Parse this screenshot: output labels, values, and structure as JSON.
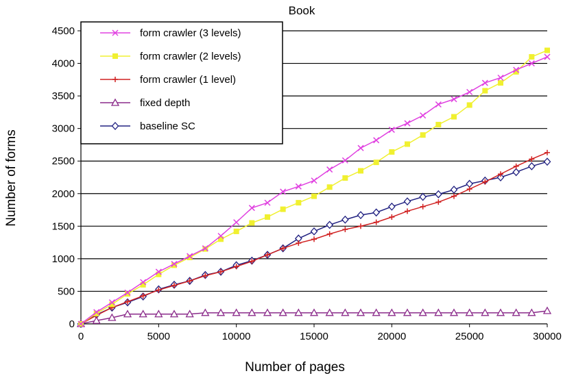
{
  "chart_data": {
    "type": "line",
    "title": "Book",
    "xlabel": "Number of pages",
    "ylabel": "Number of forms",
    "xlim": [
      0,
      30000
    ],
    "ylim": [
      0,
      4500
    ],
    "xticks": [
      0,
      5000,
      10000,
      15000,
      20000,
      25000,
      30000
    ],
    "yticks": [
      0,
      500,
      1000,
      1500,
      2000,
      2500,
      3000,
      3500,
      4000,
      4500
    ],
    "grid": "horizontal",
    "legend_position": "top-left",
    "series": [
      {
        "name": "form crawler (3 levels)",
        "color": "#e040e0",
        "marker": "x",
        "x": [
          0,
          1000,
          2000,
          3000,
          4000,
          5000,
          6000,
          7000,
          8000,
          9000,
          10000,
          11000,
          12000,
          13000,
          14000,
          15000,
          16000,
          17000,
          18000,
          19000,
          20000,
          21000,
          22000,
          23000,
          24000,
          25000,
          26000,
          27000,
          28000,
          29000,
          30000
        ],
        "y": [
          0,
          180,
          330,
          480,
          640,
          800,
          920,
          1040,
          1160,
          1350,
          1560,
          1780,
          1860,
          2030,
          2110,
          2200,
          2370,
          2510,
          2700,
          2820,
          2980,
          3080,
          3200,
          3370,
          3450,
          3560,
          3700,
          3780,
          3900,
          4000,
          4100
        ]
      },
      {
        "name": "form crawler (2 levels)",
        "color": "#f0f030",
        "marker": "square",
        "x": [
          0,
          1000,
          2000,
          3000,
          4000,
          5000,
          6000,
          7000,
          8000,
          9000,
          10000,
          11000,
          12000,
          13000,
          14000,
          15000,
          16000,
          17000,
          18000,
          19000,
          20000,
          21000,
          22000,
          23000,
          24000,
          25000,
          26000,
          27000,
          28000,
          29000,
          30000
        ],
        "y": [
          0,
          160,
          300,
          460,
          600,
          760,
          900,
          1020,
          1150,
          1300,
          1420,
          1550,
          1640,
          1760,
          1860,
          1960,
          2100,
          2240,
          2350,
          2480,
          2640,
          2760,
          2900,
          3060,
          3180,
          3360,
          3580,
          3700,
          3870,
          4100,
          4200
        ]
      },
      {
        "name": "form crawler (1 level)",
        "color": "#d02020",
        "marker": "plus",
        "x": [
          0,
          1000,
          2000,
          3000,
          4000,
          5000,
          6000,
          7000,
          8000,
          9000,
          10000,
          11000,
          12000,
          13000,
          14000,
          15000,
          16000,
          17000,
          18000,
          19000,
          20000,
          21000,
          22000,
          23000,
          24000,
          25000,
          26000,
          27000,
          28000,
          29000,
          30000
        ],
        "y": [
          0,
          130,
          250,
          340,
          430,
          520,
          590,
          660,
          740,
          800,
          880,
          960,
          1060,
          1160,
          1240,
          1300,
          1380,
          1450,
          1500,
          1560,
          1640,
          1730,
          1800,
          1870,
          1960,
          2070,
          2180,
          2300,
          2420,
          2530,
          2630
        ]
      },
      {
        "name": "fixed depth",
        "color": "#8a2a8a",
        "marker": "triangle",
        "x": [
          0,
          1000,
          2000,
          3000,
          4000,
          5000,
          6000,
          7000,
          8000,
          9000,
          10000,
          11000,
          12000,
          13000,
          14000,
          15000,
          16000,
          17000,
          18000,
          19000,
          20000,
          21000,
          22000,
          23000,
          24000,
          25000,
          26000,
          27000,
          28000,
          29000,
          30000
        ],
        "y": [
          0,
          50,
          95,
          150,
          150,
          150,
          150,
          150,
          170,
          170,
          170,
          170,
          170,
          170,
          170,
          170,
          170,
          170,
          170,
          170,
          170,
          170,
          170,
          170,
          170,
          170,
          170,
          170,
          170,
          170,
          200
        ]
      },
      {
        "name": "baseline SC",
        "color": "#202080",
        "marker": "diamond",
        "x": [
          0,
          1000,
          2000,
          3000,
          4000,
          5000,
          6000,
          7000,
          8000,
          9000,
          10000,
          11000,
          12000,
          13000,
          14000,
          15000,
          16000,
          17000,
          18000,
          19000,
          20000,
          21000,
          22000,
          23000,
          24000,
          25000,
          26000,
          27000,
          28000,
          29000,
          30000
        ],
        "y": [
          0,
          140,
          250,
          330,
          420,
          530,
          600,
          660,
          750,
          800,
          900,
          970,
          1060,
          1160,
          1310,
          1420,
          1520,
          1600,
          1670,
          1710,
          1800,
          1880,
          1950,
          1990,
          2060,
          2150,
          2200,
          2250,
          2330,
          2420,
          2490
        ]
      }
    ]
  }
}
